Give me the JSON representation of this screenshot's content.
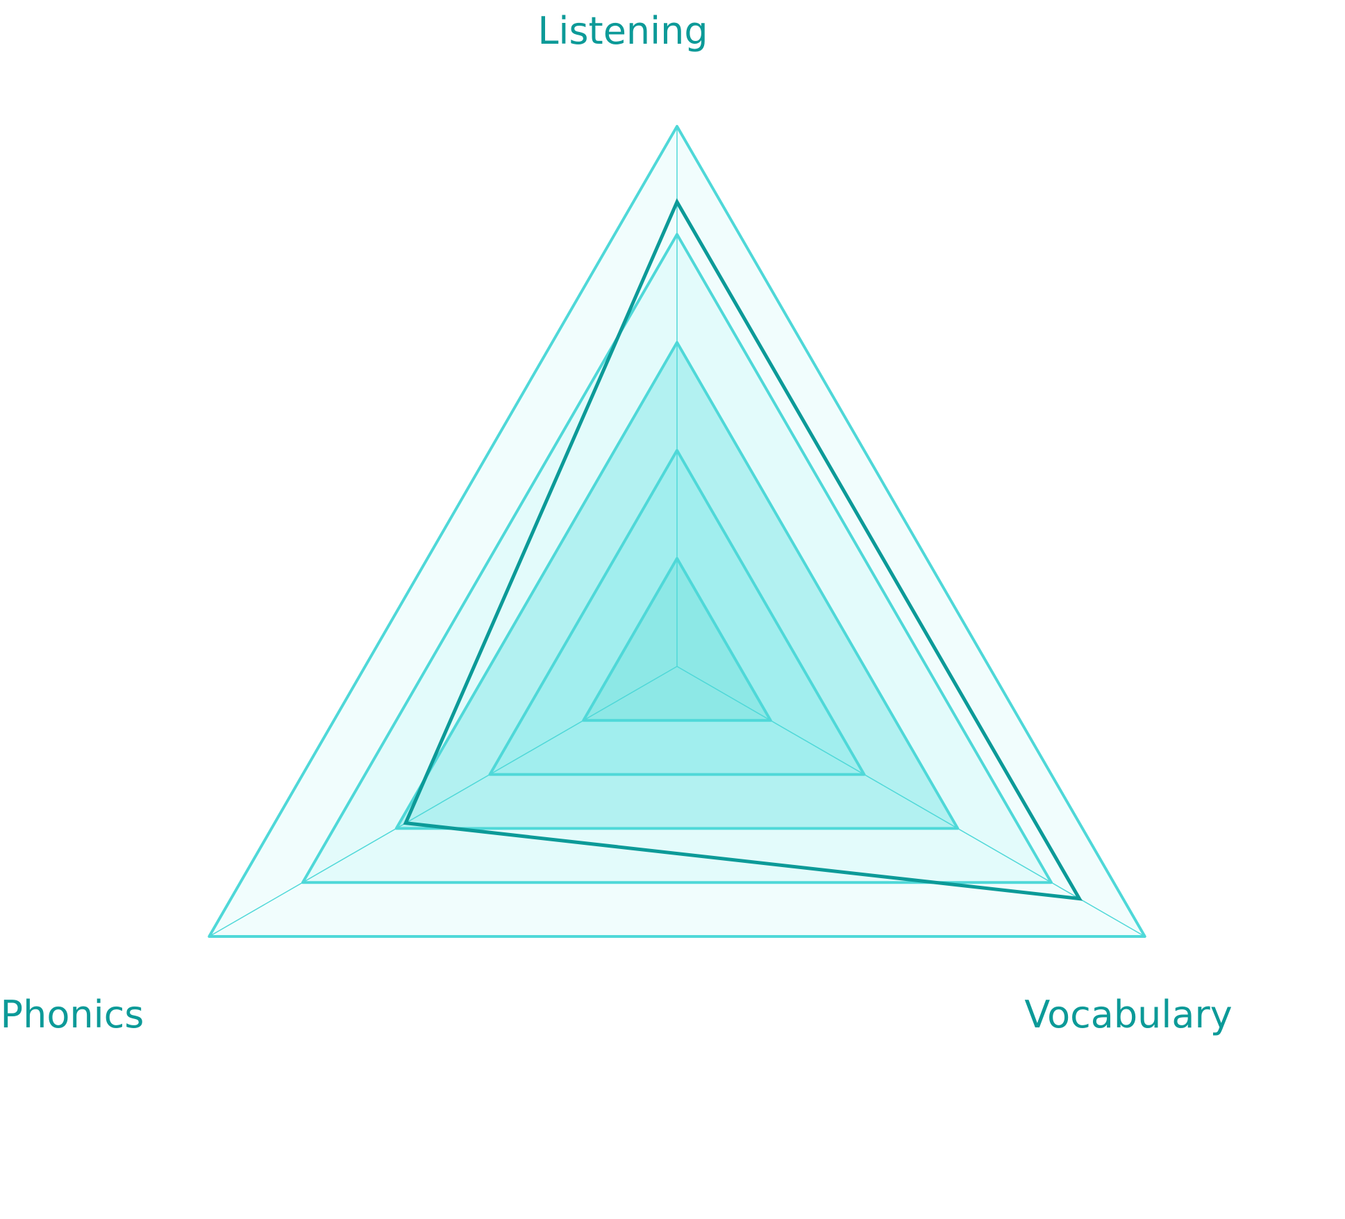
{
  "chart_data": {
    "type": "radar",
    "title": "",
    "axes": [
      "Listening",
      "Vocabulary",
      "Phonics"
    ],
    "rlim": [
      0,
      100
    ],
    "rings": [
      20,
      40,
      60,
      80,
      100
    ],
    "series": [
      {
        "values": [
          86,
          86,
          58
        ]
      }
    ],
    "legend": "none",
    "grid": true
  },
  "colors": {
    "ring_stroke": "#4fd8d8",
    "ring_fill_outer": "#f1fdfd",
    "ring_fill_2": "#e3fbfb",
    "ring_fill_3": "#b2f1f1",
    "ring_fill_4": "#a1eeee",
    "ring_fill_inner": "#8de8e6",
    "series_stroke": "#0c9a98",
    "label": "#0c9a98"
  }
}
